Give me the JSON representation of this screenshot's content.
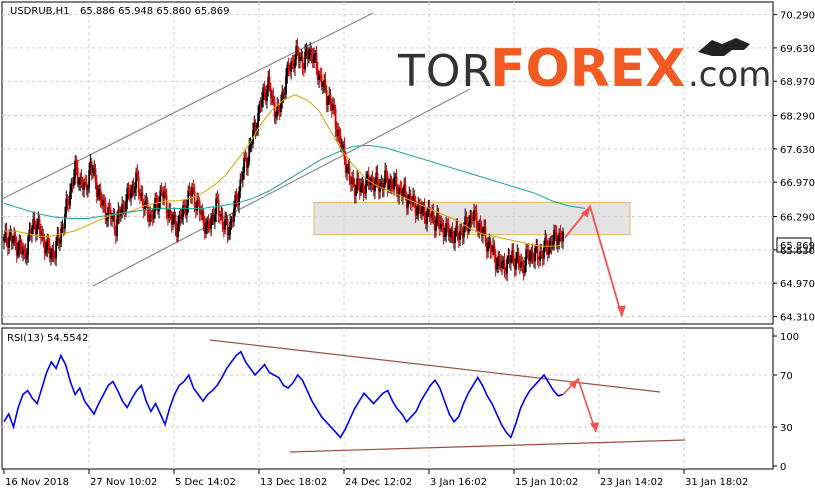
{
  "chart_data": [
    {
      "type": "candlestick",
      "symbol_label": "USDRUB,H1",
      "ohlc_label": "65.886 65.948 65.860 65.869",
      "current_price": 65.869,
      "current_price_label": "65.869",
      "ylim": [
        64.2,
        70.5
      ],
      "y_ticks": [
        "70.290",
        "69.630",
        "68.970",
        "68.290",
        "67.630",
        "66.970",
        "66.290",
        "65.630",
        "64.970",
        "64.310"
      ],
      "y_tick_values": [
        70.29,
        69.63,
        68.97,
        68.29,
        67.63,
        66.97,
        66.29,
        65.63,
        64.97,
        64.31
      ],
      "x_ticks": [
        "16 Nov 2018",
        "27 Nov 10:02",
        "5 Dec 14:02",
        "13 Dec 18:02",
        "24 Dec 12:02",
        "3 Jan 16:02",
        "15 Jan 10:02",
        "23 Jan 14:02",
        "31 Jan 18:02"
      ],
      "price_path": [
        65.8,
        65.9,
        65.75,
        65.7,
        65.5,
        65.9,
        66.2,
        66.0,
        65.75,
        65.55,
        65.6,
        65.9,
        66.3,
        66.8,
        67.2,
        67.0,
        66.8,
        67.3,
        67.0,
        66.6,
        66.4,
        66.3,
        66.1,
        66.4,
        66.6,
        66.8,
        67.0,
        66.7,
        66.4,
        66.3,
        66.5,
        66.8,
        66.5,
        66.2,
        66.1,
        66.3,
        66.6,
        66.8,
        66.5,
        66.3,
        66.0,
        66.3,
        66.5,
        66.2,
        66.0,
        66.3,
        66.7,
        67.2,
        67.5,
        67.9,
        68.3,
        68.7,
        68.9,
        68.5,
        68.3,
        68.8,
        69.2,
        69.4,
        69.5,
        69.3,
        69.6,
        69.4,
        69.1,
        68.8,
        68.6,
        68.3,
        67.8,
        67.5,
        67.0,
        66.9,
        66.85,
        66.9,
        67.0,
        66.95,
        66.9,
        67.0,
        66.95,
        66.9,
        66.8,
        66.7,
        66.6,
        66.5,
        66.4,
        66.35,
        66.3,
        66.2,
        66.1,
        66.0,
        65.95,
        65.9,
        66.0,
        66.1,
        66.3,
        66.2,
        66.0,
        65.8,
        65.6,
        65.4,
        65.3,
        65.35,
        65.5,
        65.4,
        65.3,
        65.5,
        65.55,
        65.5,
        65.6,
        65.7,
        65.8,
        65.9,
        65.87
      ],
      "ma_orange": [
        66.0,
        66.0,
        65.95,
        65.9,
        65.9,
        65.95,
        66.0,
        66.1,
        66.2,
        66.3,
        66.35,
        66.4,
        66.5,
        66.55,
        66.6,
        66.6,
        66.65,
        66.75,
        66.9,
        67.1,
        67.4,
        67.7,
        68.1,
        68.4,
        68.6,
        68.7,
        68.6,
        68.4,
        68.0,
        67.6,
        67.3,
        67.05,
        66.9,
        66.8,
        66.7,
        66.6,
        66.5,
        66.4,
        66.3,
        66.2,
        66.05,
        65.95,
        65.9,
        65.85,
        65.8,
        65.75,
        65.7,
        65.7,
        65.72
      ],
      "ma_teal": [
        66.55,
        66.45,
        66.35,
        66.28,
        66.25,
        66.25,
        66.3,
        66.35,
        66.4,
        66.45,
        66.45,
        66.45,
        66.45,
        66.5,
        66.55,
        66.65,
        66.8,
        67.0,
        67.2,
        67.4,
        67.55,
        67.68,
        67.7,
        67.65,
        67.55,
        67.45,
        67.35,
        67.25,
        67.15,
        67.05,
        66.95,
        66.85,
        66.75,
        66.6,
        66.5,
        66.45
      ],
      "resistance_zone": [
        65.93,
        66.57
      ],
      "projected_path": [
        65.87,
        66.49,
        64.31
      ],
      "upper_channel": [
        [
          66.9,
          70.9
        ]
      ],
      "watermark": "TORFOREX.com"
    },
    {
      "type": "line",
      "label": "RSI(13) 54.5542",
      "ylim": [
        0,
        100
      ],
      "y_ticks": [
        "100",
        "70",
        "30",
        "0"
      ],
      "y_tick_values": [
        100,
        70,
        30,
        0
      ],
      "values": [
        34,
        40,
        30,
        45,
        55,
        58,
        52,
        48,
        60,
        72,
        80,
        75,
        85,
        78,
        65,
        55,
        60,
        50,
        45,
        40,
        48,
        55,
        62,
        65,
        58,
        50,
        45,
        52,
        58,
        62,
        50,
        42,
        48,
        40,
        32,
        45,
        55,
        62,
        65,
        70,
        60,
        55,
        50,
        55,
        58,
        62,
        68,
        75,
        80,
        85,
        88,
        80,
        75,
        70,
        74,
        78,
        72,
        70,
        68,
        62,
        60,
        64,
        70,
        66,
        58,
        50,
        44,
        38,
        34,
        30,
        26,
        22,
        28,
        36,
        44,
        50,
        56,
        52,
        48,
        52,
        56,
        58,
        50,
        44,
        40,
        34,
        38,
        42,
        50,
        56,
        62,
        66,
        60,
        50,
        40,
        34,
        38,
        48,
        56,
        62,
        68,
        62,
        54,
        48,
        40,
        32,
        26,
        22,
        32,
        44,
        52,
        58,
        62,
        66,
        70,
        64,
        58,
        54,
        55
      ],
      "upper_trendline": [
        [
          210,
          340
        ],
        [
          660,
          392
        ]
      ],
      "lower_trendline": [
        [
          290,
          452
        ],
        [
          685,
          440
        ]
      ],
      "projected_path": [
        55,
        67,
        26
      ]
    }
  ]
}
